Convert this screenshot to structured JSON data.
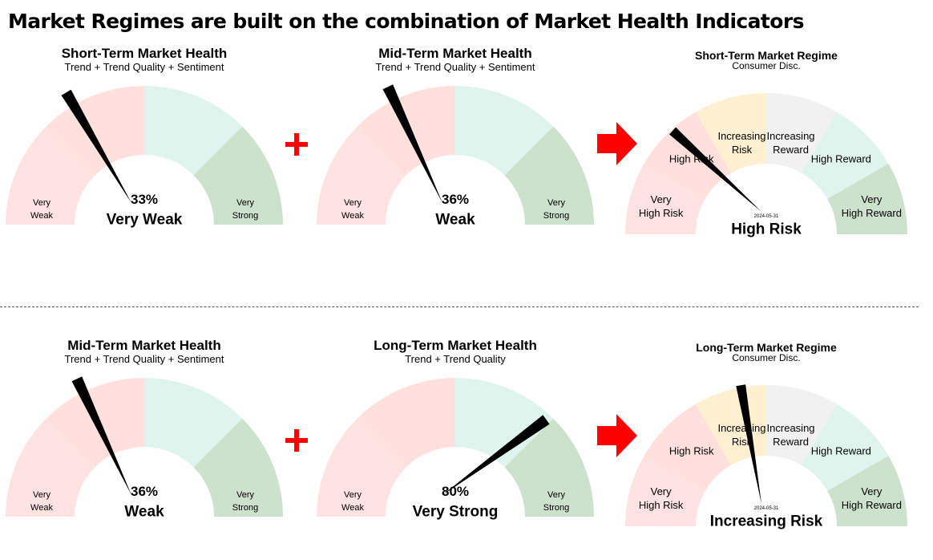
{
  "title": "Market Regimes are built on the combination of Market Health Indicators",
  "colors": {
    "health_bands": [
      "#ffe2e2",
      "#ffe0dc",
      "#e0f4ee",
      "#cde2cd"
    ],
    "regime_bands": [
      "#ffe2e2",
      "#ffe0dc",
      "#fff0d2",
      "#f1f1f1",
      "#e0f4ee",
      "#cde2cd"
    ],
    "needle": "#000000",
    "plus": "#ff0000",
    "arrow": "#ff0000"
  },
  "health_gauges": [
    {
      "id": "short-term-health",
      "title": "Short-Term Market Health",
      "subtitle": "Trend + Trend Quality + Sentiment",
      "value_pct": 33,
      "value_label": "33%",
      "status": "Very Weak",
      "left_label": [
        "Very",
        "Weak"
      ],
      "right_label": [
        "Very",
        "Strong"
      ]
    },
    {
      "id": "mid-term-health-top",
      "title": "Mid-Term Market Health",
      "subtitle": "Trend + Trend Quality + Sentiment",
      "value_pct": 36,
      "value_label": "36%",
      "status": "Weak",
      "left_label": [
        "Very",
        "Weak"
      ],
      "right_label": [
        "Very",
        "Strong"
      ]
    },
    {
      "id": "mid-term-health-bottom",
      "title": "Mid-Term Market Health",
      "subtitle": "Trend + Trend Quality + Sentiment",
      "value_pct": 36,
      "value_label": "36%",
      "status": "Weak",
      "left_label": [
        "Very",
        "Weak"
      ],
      "right_label": [
        "Very",
        "Strong"
      ]
    },
    {
      "id": "long-term-health",
      "title": "Long-Term Market Health",
      "subtitle": "Trend + Trend Quality",
      "value_pct": 80,
      "value_label": "80%",
      "status": "Very Strong",
      "left_label": [
        "Very",
        "Weak"
      ],
      "right_label": [
        "Very",
        "Strong"
      ]
    }
  ],
  "regime_gauges": [
    {
      "id": "short-term-regime",
      "title": "Short-Term Market Regime",
      "subtitle": "Consumer Disc.",
      "date": "2024-05-31",
      "status": "High Risk",
      "needle_pct": 0.235,
      "labels": [
        [
          "Very",
          "High Risk"
        ],
        [
          "High Risk"
        ],
        [
          "Increasing",
          "Risk"
        ],
        [
          "Increasing",
          "Reward"
        ],
        [
          "High Reward"
        ],
        [
          "Very",
          "High Reward"
        ]
      ]
    },
    {
      "id": "long-term-regime",
      "title": "Long-Term Market Regime",
      "subtitle": "Consumer Disc.",
      "date": "2024-05-31",
      "status": "Increasing Risk",
      "needle_pct": 0.445,
      "labels": [
        [
          "Very",
          "High Risk"
        ],
        [
          "High Risk"
        ],
        [
          "Increasing",
          "Risk"
        ],
        [
          "Increasing",
          "Reward"
        ],
        [
          "High Reward"
        ],
        [
          "Very",
          "High Reward"
        ]
      ]
    }
  ]
}
